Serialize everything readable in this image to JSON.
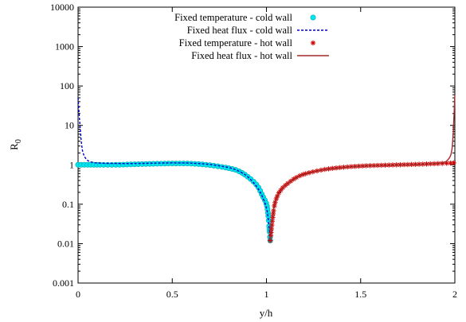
{
  "chart_data": {
    "type": "line",
    "title": "",
    "xlabel": "y/h",
    "ylabel_main": "R",
    "ylabel_sub": "0",
    "xlim": [
      0,
      2
    ],
    "ylim": [
      0.001,
      10000
    ],
    "yscale": "log",
    "grid": false,
    "legend_position": "top-center",
    "x_ticks": [
      {
        "value": 0,
        "label": "0"
      },
      {
        "value": 0.5,
        "label": "0.5"
      },
      {
        "value": 1,
        "label": "1"
      },
      {
        "value": 1.5,
        "label": "1.5"
      },
      {
        "value": 2,
        "label": "2"
      }
    ],
    "y_ticks": [
      {
        "value": 0.001,
        "label": "0.001"
      },
      {
        "value": 0.01,
        "label": "0.01"
      },
      {
        "value": 0.1,
        "label": "0.1"
      },
      {
        "value": 1,
        "label": "1"
      },
      {
        "value": 10,
        "label": "10"
      },
      {
        "value": 100,
        "label": "100"
      },
      {
        "value": 1000,
        "label": "1000"
      },
      {
        "value": 10000,
        "label": "10000"
      }
    ],
    "series": [
      {
        "name": "Fixed temperature - cold wall",
        "style": "markers-circle",
        "color": "#00e5ee",
        "x": [
          0.0,
          0.03,
          0.06,
          0.1,
          0.2,
          0.3,
          0.4,
          0.5,
          0.6,
          0.7,
          0.8,
          0.85,
          0.9,
          0.95,
          0.98,
          1.0,
          1.01,
          1.02
        ],
        "y": [
          1.0,
          1.0,
          1.0,
          1.0,
          1.0,
          1.03,
          1.06,
          1.08,
          1.07,
          0.98,
          0.82,
          0.7,
          0.5,
          0.3,
          0.16,
          0.1,
          0.05,
          0.012
        ]
      },
      {
        "name": "Fixed heat flux - cold wall",
        "style": "dashed-line",
        "color": "#0000cc",
        "x": [
          0.0,
          0.01,
          0.02,
          0.03,
          0.05,
          0.08,
          0.12,
          0.2,
          0.3,
          0.4,
          0.5,
          0.6,
          0.7,
          0.8,
          0.85,
          0.9,
          0.95,
          0.98,
          1.0,
          1.01,
          1.02
        ],
        "y": [
          50,
          10,
          3,
          1.8,
          1.3,
          1.15,
          1.1,
          1.08,
          1.08,
          1.1,
          1.12,
          1.1,
          1.02,
          0.85,
          0.7,
          0.5,
          0.27,
          0.15,
          0.08,
          0.04,
          0.012
        ]
      },
      {
        "name": "Fixed temperature - hot wall",
        "style": "markers-star",
        "color": "#cc0000",
        "x": [
          1.02,
          1.04,
          1.06,
          1.08,
          1.1,
          1.15,
          1.2,
          1.3,
          1.4,
          1.5,
          1.6,
          1.7,
          1.8,
          1.9,
          2.0
        ],
        "y": [
          0.012,
          0.08,
          0.17,
          0.24,
          0.3,
          0.45,
          0.58,
          0.75,
          0.86,
          0.93,
          0.97,
          1.0,
          1.03,
          1.07,
          1.12
        ]
      },
      {
        "name": "Fixed heat flux - hot wall",
        "style": "solid-line",
        "color": "#a52a2a",
        "x": [
          1.02,
          1.04,
          1.06,
          1.08,
          1.1,
          1.15,
          1.2,
          1.3,
          1.4,
          1.5,
          1.6,
          1.7,
          1.8,
          1.85,
          1.9,
          1.94,
          1.96,
          1.98,
          1.99,
          2.0
        ],
        "y": [
          0.012,
          0.09,
          0.16,
          0.23,
          0.3,
          0.44,
          0.57,
          0.74,
          0.85,
          0.92,
          0.96,
          0.99,
          1.02,
          1.05,
          1.08,
          1.15,
          1.3,
          1.9,
          5,
          60
        ]
      }
    ]
  }
}
